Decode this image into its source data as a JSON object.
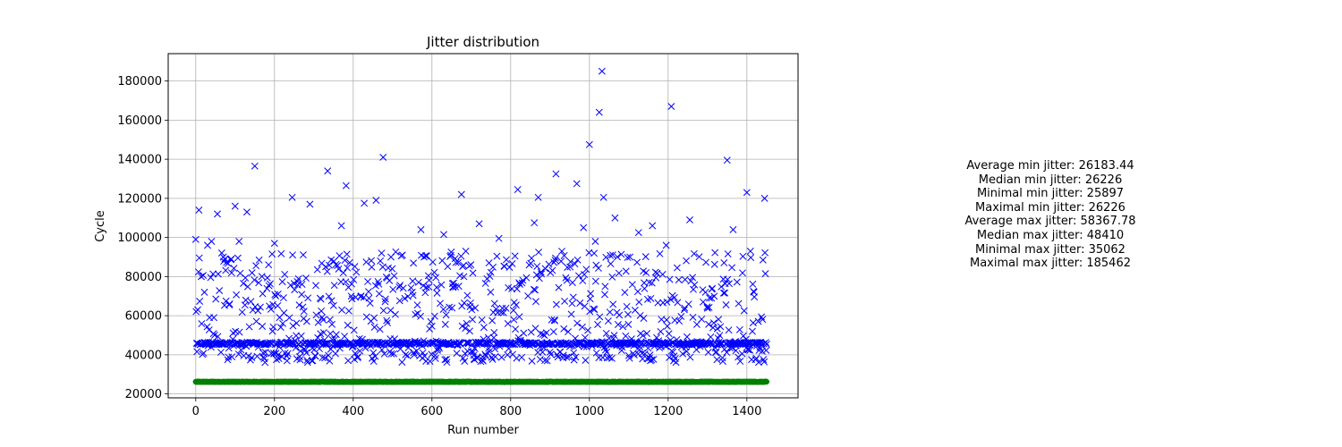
{
  "chart_data": {
    "type": "scatter",
    "title": "Jitter distribution",
    "xlabel": "Run number",
    "ylabel": "Cycle",
    "xlim": [
      -70,
      1530
    ],
    "ylim": [
      18000,
      194000
    ],
    "xticks": [
      0,
      200,
      400,
      600,
      800,
      1000,
      1200,
      1400
    ],
    "yticks": [
      20000,
      40000,
      60000,
      80000,
      100000,
      120000,
      140000,
      160000,
      180000
    ],
    "grid": true,
    "run_count": 1451,
    "series": [
      {
        "name": "",
        "role": "max jitter",
        "color": "#0000ff",
        "marker": "x",
        "baseline_value": 45800,
        "notable_points": [
          [
            0,
            99000
          ],
          [
            8,
            114000
          ],
          [
            14,
            80000
          ],
          [
            22,
            72000
          ],
          [
            30,
            96000
          ],
          [
            40,
            98000
          ],
          [
            55,
            112000
          ],
          [
            70,
            90000
          ],
          [
            90,
            89000
          ],
          [
            100,
            116000
          ],
          [
            110,
            98000
          ],
          [
            130,
            113000
          ],
          [
            150,
            136500
          ],
          [
            200,
            97000
          ],
          [
            245,
            120500
          ],
          [
            290,
            117000
          ],
          [
            335,
            134000
          ],
          [
            370,
            106000
          ],
          [
            382,
            126500
          ],
          [
            428,
            117500
          ],
          [
            458,
            119000
          ],
          [
            476,
            141000
          ],
          [
            572,
            104000
          ],
          [
            630,
            101500
          ],
          [
            675,
            122000
          ],
          [
            720,
            107000
          ],
          [
            770,
            99500
          ],
          [
            818,
            124500
          ],
          [
            860,
            107500
          ],
          [
            870,
            120500
          ],
          [
            915,
            132500
          ],
          [
            968,
            127500
          ],
          [
            985,
            105000
          ],
          [
            1000,
            147500
          ],
          [
            1015,
            98000
          ],
          [
            1025,
            164000
          ],
          [
            1032,
            185000
          ],
          [
            1036,
            120500
          ],
          [
            1065,
            110000
          ],
          [
            1125,
            102500
          ],
          [
            1160,
            106000
          ],
          [
            1195,
            96000
          ],
          [
            1208,
            167000
          ],
          [
            1255,
            109000
          ],
          [
            1350,
            139500
          ],
          [
            1365,
            104000
          ],
          [
            1400,
            123000
          ],
          [
            1445,
            120000
          ]
        ]
      },
      {
        "name": "",
        "role": "min jitter",
        "color": "#008000",
        "marker": "o",
        "baseline_value": 26183
      }
    ]
  },
  "stats": {
    "lines": [
      "Average min jitter: 26183.44",
      "Median min jitter: 26226",
      "Minimal min jitter: 25897",
      "Maximal min jitter: 26226",
      "Average max jitter: 58367.78",
      "Median max jitter: 48410",
      "Minimal max jitter: 35062",
      "Maximal max jitter: 185462"
    ]
  },
  "colors": {
    "max_series": "#0000ff",
    "min_series": "#008000",
    "grid": "#b0b0b0",
    "axes": "#000000"
  }
}
